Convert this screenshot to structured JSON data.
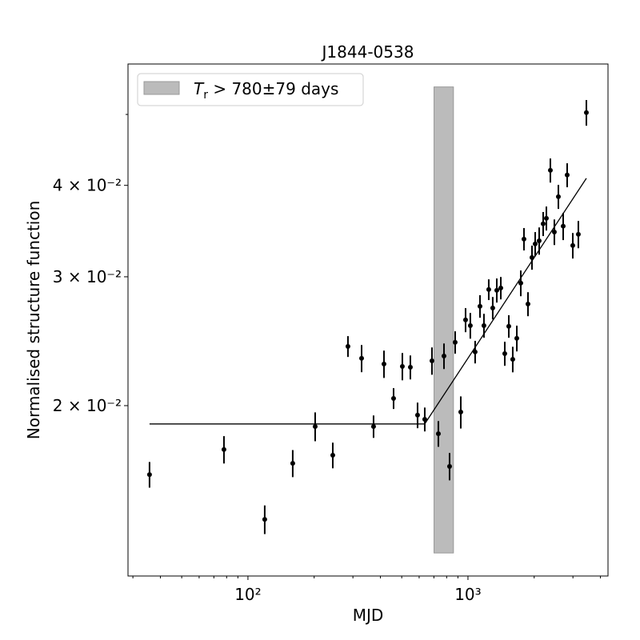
{
  "chart_data": {
    "type": "scatter",
    "title": "J1844-0538",
    "xlabel": "MJD",
    "ylabel": "Normalised structure function",
    "xscale": "log",
    "yscale": "log",
    "xlim": [
      28.5,
      4330
    ],
    "ylim": [
      0.0117,
      0.0586
    ],
    "xticks": [
      {
        "value": 100,
        "label": "10²"
      },
      {
        "value": 1000,
        "label": "10³"
      }
    ],
    "xticks_minor": [
      30,
      40,
      50,
      60,
      70,
      80,
      90,
      200,
      300,
      400,
      500,
      600,
      700,
      800,
      900,
      2000,
      3000,
      4000
    ],
    "yticks": [
      {
        "value": 0.02,
        "label": "2 × 10⁻²"
      },
      {
        "value": 0.03,
        "label": "3 × 10⁻²"
      },
      {
        "value": 0.04,
        "label": "4 × 10⁻²"
      }
    ],
    "yticks_minor": [
      0.05
    ],
    "legend": "upper left",
    "series": [
      {
        "color": "#000000",
        "x": [
          35.7,
          77.8,
          119.2,
          159.8,
          202.1,
          243.0,
          284.8,
          328.5,
          372.3,
          415.2,
          459.1,
          503.3,
          547.3,
          590.1,
          636.3,
          686.1,
          733.7,
          778.0,
          824.9,
          874.6,
          927.5,
          975.2,
          1025,
          1078,
          1134,
          1182,
          1243,
          1296,
          1352,
          1410,
          1470,
          1533,
          1598,
          1667,
          1738,
          1797,
          1874,
          1954,
          2021,
          2107,
          2197,
          2272,
          2369,
          2470,
          2576,
          2709,
          2824,
          2995,
          3175,
          3453
        ],
        "values": [
          0.0161,
          0.01742,
          0.01398,
          0.01668,
          0.01873,
          0.01711,
          0.0241,
          0.02321,
          0.01873,
          0.0228,
          0.02046,
          0.02263,
          0.02257,
          0.01941,
          0.01916,
          0.02303,
          0.01831,
          0.02338,
          0.01652,
          0.02441,
          0.0196,
          0.02619,
          0.02573,
          0.02368,
          0.02734,
          0.02573,
          0.02882,
          0.02719,
          0.02875,
          0.02896,
          0.02356,
          0.02567,
          0.02314,
          0.02472,
          0.02941,
          0.03378,
          0.02754,
          0.03188,
          0.03327,
          0.0336,
          0.03544,
          0.03606,
          0.04194,
          0.03454,
          0.0386,
          0.03518,
          0.04132,
          0.0331,
          0.03429,
          0.05029
        ],
        "yerr": [
          0.00065,
          0.00075,
          0.00063,
          0.00071,
          0.00085,
          0.00069,
          0.00079,
          0.00099,
          0.00066,
          0.00098,
          0.00067,
          0.00097,
          0.00085,
          0.00078,
          0.00072,
          0.00099,
          0.00074,
          0.00094,
          0.00071,
          0.00086,
          0.00099,
          0.00099,
          0.00104,
          0.00084,
          0.00097,
          0.00097,
          0.00094,
          0.00096,
          0.00109,
          0.00102,
          0.00089,
          0.00091,
          0.00093,
          0.001,
          0.00119,
          0.00119,
          0.00104,
          0.00121,
          0.00126,
          0.00144,
          0.00134,
          0.00136,
          0.00159,
          0.00139,
          0.00146,
          0.00151,
          0.00156,
          0.00133,
          0.00147,
          0.00203
        ]
      }
    ],
    "fit": {
      "type": "line",
      "color": "#000000",
      "x": [
        35.7,
        636,
        3453
      ],
      "values": [
        0.01888,
        0.01888,
        0.0409
      ]
    },
    "band": {
      "name_parts": [
        "T",
        "r",
        " > 780±79 days"
      ],
      "xrange": [
        701,
        859
      ],
      "yrange": [
        0.01258,
        0.05452
      ],
      "color": "#bbbbbb",
      "edgecolor": "#999999"
    }
  }
}
